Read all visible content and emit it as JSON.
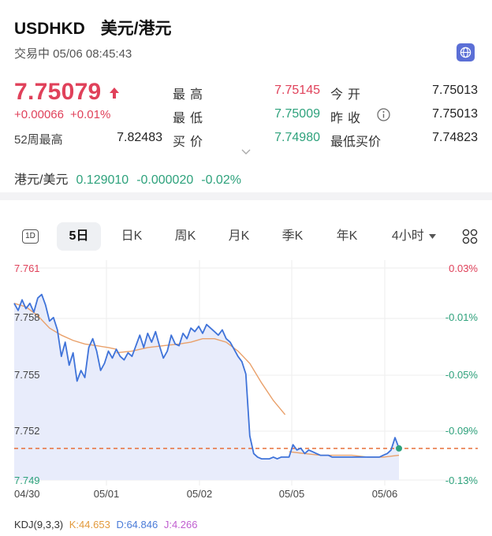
{
  "header": {
    "symbol": "USDHKD",
    "pair_name": "美元/港元",
    "status_line": "交易中 05/06 08:45:43"
  },
  "quote": {
    "last": "7.75079",
    "change": "+0.00066",
    "change_pct": "+0.01%",
    "high_label": "最高",
    "high": "7.75145",
    "low_label": "最低",
    "low": "7.75009",
    "bid_label": "买价",
    "bid": "7.74980",
    "open_label": "今开",
    "open": "7.75013",
    "prev_close_label": "昨收",
    "prev_close": "7.75013",
    "lowest_bid_label": "最低买价",
    "lowest_bid": "7.74823",
    "wk52_high_label": "52周最高",
    "wk52_high": "7.82483",
    "colors": {
      "up": "#e0415a",
      "down": "#2ea27c"
    }
  },
  "related": {
    "name": "港元/美元",
    "price": "0.129010",
    "change": "-0.000020",
    "change_pct": "-0.02%"
  },
  "tabs": [
    {
      "label": "1D",
      "active": false
    },
    {
      "label": "5日",
      "active": true
    },
    {
      "label": "日K",
      "active": false
    },
    {
      "label": "周K",
      "active": false
    },
    {
      "label": "月K",
      "active": false
    },
    {
      "label": "季K",
      "active": false
    },
    {
      "label": "年K",
      "active": false
    },
    {
      "label": "4小时",
      "active": false
    }
  ],
  "chart_data": {
    "type": "line",
    "x_labels": [
      "04/30",
      "05/01",
      "05/02",
      "05/05",
      "05/06"
    ],
    "y_ticks_left": [
      "7.761",
      "7.758",
      "7.755",
      "7.752",
      "7.749"
    ],
    "y_ticks_right": [
      "0.03%",
      "-0.01%",
      "-0.05%",
      "-0.09%",
      "-0.13%"
    ],
    "ylim": [
      7.749,
      7.761
    ],
    "reference_price": 7.75013,
    "current_price": 7.75079,
    "series": [
      {
        "name": "price",
        "color": "#3f73d9",
        "points": [
          [
            0,
            7.759
          ],
          [
            0.5,
            7.7586
          ],
          [
            1,
            7.7592
          ],
          [
            1.5,
            7.7587
          ],
          [
            2,
            7.759
          ],
          [
            2.5,
            7.7585
          ],
          [
            3,
            7.7593
          ],
          [
            3.5,
            7.7595
          ],
          [
            4,
            7.7589
          ],
          [
            4.5,
            7.758
          ],
          [
            5,
            7.7582
          ],
          [
            5.5,
            7.7575
          ],
          [
            6,
            7.756
          ],
          [
            6.5,
            7.7568
          ],
          [
            7,
            7.7555
          ],
          [
            7.5,
            7.7562
          ],
          [
            8,
            7.7546
          ],
          [
            8.5,
            7.7552
          ],
          [
            9,
            7.7548
          ],
          [
            9.5,
            7.7565
          ],
          [
            10,
            7.757
          ],
          [
            10.5,
            7.7563
          ],
          [
            11,
            7.7552
          ],
          [
            11.5,
            7.7556
          ],
          [
            12,
            7.7563
          ],
          [
            12.5,
            7.7559
          ],
          [
            13,
            7.7564
          ],
          [
            13.5,
            7.756
          ],
          [
            14,
            7.7558
          ],
          [
            14.5,
            7.7562
          ],
          [
            15,
            7.756
          ],
          [
            15.5,
            7.7566
          ],
          [
            16,
            7.7572
          ],
          [
            16.5,
            7.7565
          ],
          [
            17,
            7.7573
          ],
          [
            17.5,
            7.7568
          ],
          [
            18,
            7.7574
          ],
          [
            18.5,
            7.7566
          ],
          [
            19,
            7.7559
          ],
          [
            19.5,
            7.7563
          ],
          [
            20,
            7.7572
          ],
          [
            20.5,
            7.7567
          ],
          [
            21,
            7.7566
          ],
          [
            21.5,
            7.7573
          ],
          [
            22,
            7.757
          ],
          [
            22.5,
            7.7576
          ],
          [
            23,
            7.7574
          ],
          [
            23.5,
            7.7577
          ],
          [
            24,
            7.7573
          ],
          [
            24.5,
            7.7578
          ],
          [
            25,
            7.7576
          ],
          [
            25.5,
            7.7574
          ],
          [
            26,
            7.7572
          ],
          [
            26.5,
            7.7575
          ],
          [
            27,
            7.757
          ],
          [
            27.5,
            7.7568
          ],
          [
            28,
            7.7564
          ],
          [
            28.5,
            7.756
          ],
          [
            29,
            7.7557
          ],
          [
            29.5,
            7.755
          ],
          [
            30,
            7.7515
          ],
          [
            30.5,
            7.7505
          ],
          [
            31,
            7.7503
          ],
          [
            31.5,
            7.7502
          ],
          [
            32,
            7.7502
          ],
          [
            32.5,
            7.7502
          ],
          [
            33,
            7.7503
          ],
          [
            33.5,
            7.7502
          ],
          [
            34,
            7.7503
          ],
          [
            34.5,
            7.7503
          ],
          [
            35,
            7.7503
          ],
          [
            35.5,
            7.751
          ],
          [
            36,
            7.7507
          ],
          [
            36.5,
            7.7508
          ],
          [
            37,
            7.7505
          ],
          [
            37.5,
            7.7507
          ],
          [
            38,
            7.7506
          ],
          [
            38.5,
            7.7505
          ],
          [
            39,
            7.7504
          ],
          [
            39.5,
            7.7504
          ],
          [
            40,
            7.7504
          ],
          [
            40.5,
            7.7503
          ],
          [
            41,
            7.7503
          ],
          [
            41.5,
            7.7503
          ],
          [
            42,
            7.7503
          ],
          [
            42.5,
            7.7503
          ],
          [
            43,
            7.7503
          ],
          [
            43.5,
            7.7503
          ],
          [
            44,
            7.7503
          ],
          [
            44.5,
            7.7503
          ],
          [
            45,
            7.7503
          ],
          [
            45.5,
            7.7503
          ],
          [
            46,
            7.7503
          ],
          [
            46.5,
            7.7503
          ],
          [
            47,
            7.7504
          ],
          [
            47.5,
            7.7505
          ],
          [
            48,
            7.7507
          ],
          [
            48.5,
            7.7514
          ],
          [
            49,
            7.7508
          ]
        ]
      },
      {
        "name": "average",
        "color": "#e9a06a",
        "segments": [
          [
            [
              0,
              7.759
            ],
            [
              1.5,
              7.7588
            ],
            [
              3,
              7.7583
            ],
            [
              4.5,
              7.7576
            ],
            [
              6,
              7.7572
            ],
            [
              7.5,
              7.7569
            ],
            [
              9,
              7.7567
            ],
            [
              10.5,
              7.7566
            ],
            [
              12,
              7.7565
            ],
            [
              13,
              7.7564
            ]
          ],
          [
            [
              13,
              7.7562
            ],
            [
              15,
              7.7563
            ],
            [
              17,
              7.7565
            ],
            [
              19,
              7.7566
            ],
            [
              21,
              7.7567
            ],
            [
              22.5,
              7.7568
            ],
            [
              24,
              7.757
            ],
            [
              25.5,
              7.757
            ],
            [
              27,
              7.7568
            ],
            [
              28.5,
              7.7563
            ],
            [
              30,
              7.7556
            ],
            [
              31.5,
              7.7545
            ],
            [
              33,
              7.7535
            ],
            [
              34.5,
              7.7527
            ]
          ],
          [
            [
              35,
              7.7506
            ],
            [
              37,
              7.7505
            ],
            [
              39,
              7.7504
            ],
            [
              41,
              7.7504
            ],
            [
              43,
              7.7504
            ],
            [
              45,
              7.7503
            ],
            [
              47,
              7.7503
            ],
            [
              49,
              7.7504
            ]
          ]
        ]
      }
    ]
  },
  "kdj": {
    "label": "KDJ(9,3,3)",
    "k": "K:44.653",
    "d": "D:64.846",
    "j": "J:4.266"
  }
}
